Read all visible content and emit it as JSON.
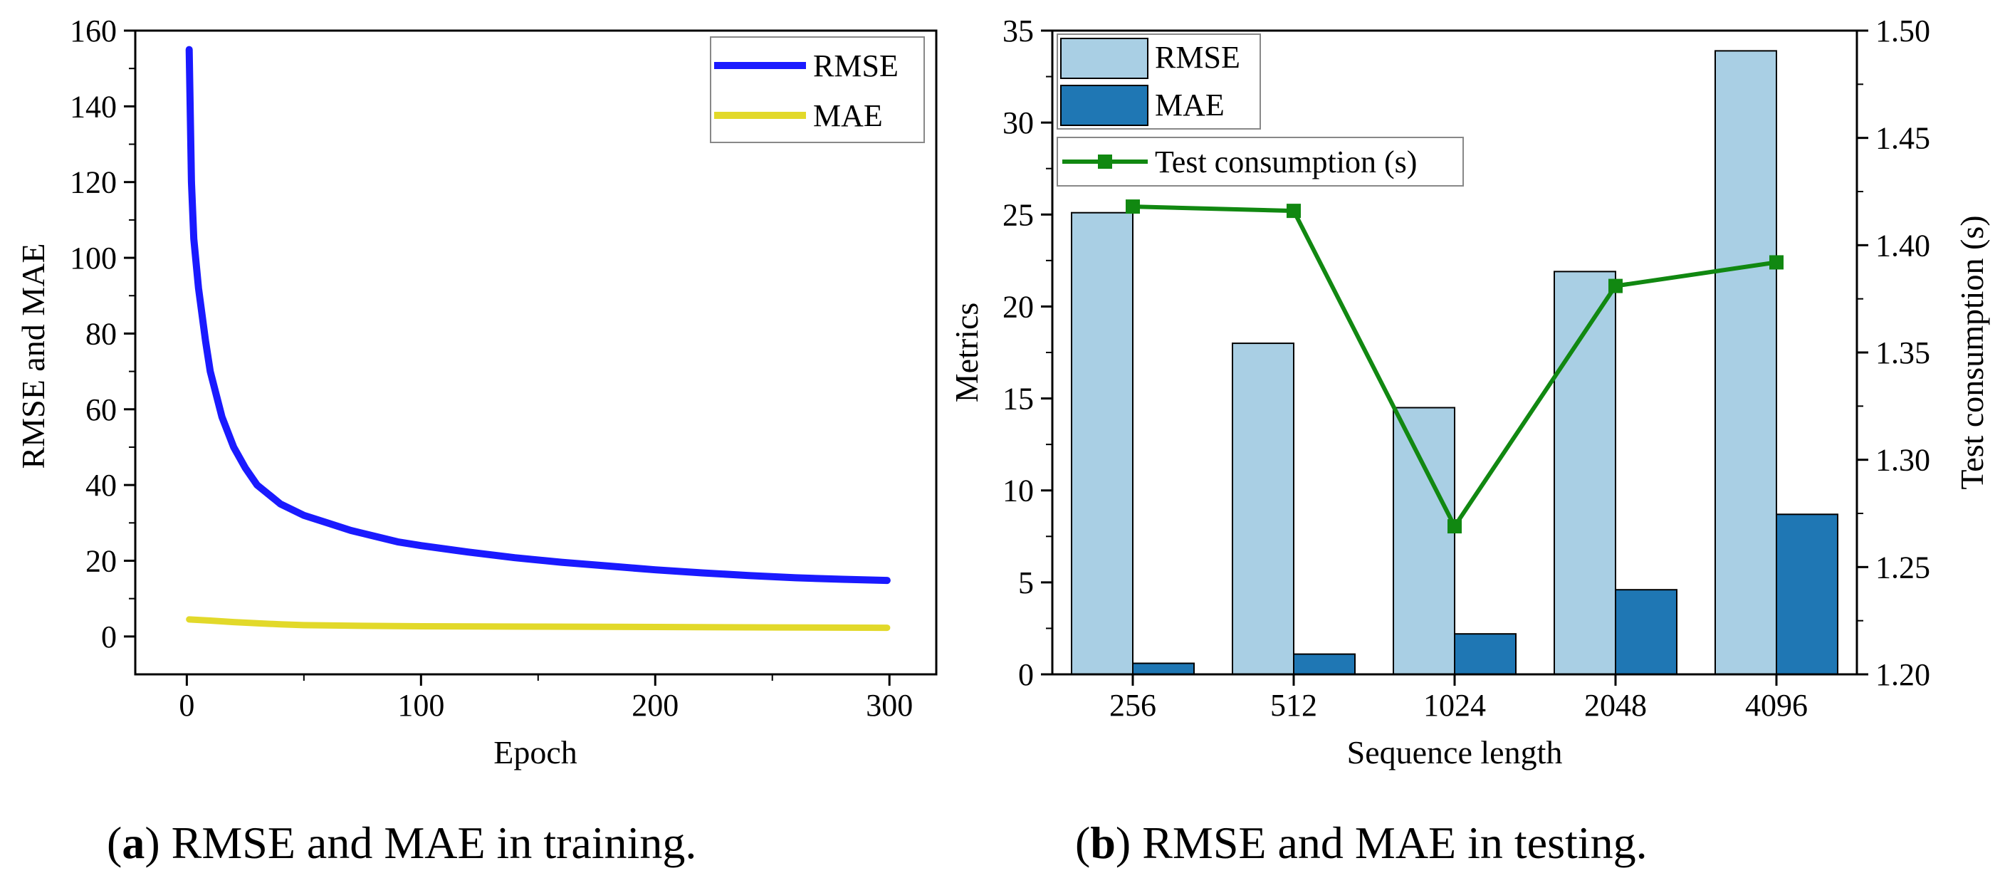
{
  "chart_data": [
    {
      "type": "line",
      "caption_prefix": "(",
      "caption_letter": "a",
      "caption_text": ") RMSE and MAE in training.",
      "xlabel": "Epoch",
      "ylabel": "RMSE and MAE",
      "xlim": [
        -22,
        320
      ],
      "ylim": [
        -10,
        160
      ],
      "xticks": [
        "0",
        "100",
        "200",
        "300"
      ],
      "xtick_values": [
        0,
        100,
        200,
        300
      ],
      "yticks": [
        "0",
        "20",
        "40",
        "60",
        "80",
        "100",
        "120",
        "140",
        "160"
      ],
      "ytick_values": [
        0,
        20,
        40,
        60,
        80,
        100,
        120,
        140,
        160
      ],
      "legend_position": "top-right",
      "series": [
        {
          "name": "RMSE",
          "color": "#1a1aff",
          "x": [
            1,
            2,
            3,
            5,
            8,
            10,
            15,
            20,
            25,
            30,
            40,
            50,
            60,
            70,
            80,
            90,
            100,
            120,
            140,
            160,
            180,
            200,
            220,
            240,
            260,
            280,
            299
          ],
          "y": [
            155,
            120,
            105,
            92,
            78,
            70,
            58,
            50,
            44.5,
            40,
            35,
            32,
            30,
            28,
            26.5,
            25,
            24,
            22.3,
            20.8,
            19.6,
            18.6,
            17.6,
            16.8,
            16.1,
            15.5,
            15.1,
            14.8
          ]
        },
        {
          "name": "MAE",
          "color": "#e2d92a",
          "x": [
            1,
            10,
            20,
            30,
            40,
            50,
            75,
            100,
            150,
            200,
            250,
            299
          ],
          "y": [
            4.5,
            4.2,
            3.8,
            3.5,
            3.2,
            3.0,
            2.8,
            2.7,
            2.6,
            2.5,
            2.4,
            2.3
          ]
        }
      ]
    },
    {
      "type": "bar",
      "caption_prefix": "(",
      "caption_letter": "b",
      "caption_text": ") RMSE and MAE in testing.",
      "xlabel": "Sequence length",
      "ylabel": "Metrics",
      "y2label": "Test consumption (s)",
      "categories": [
        "256",
        "512",
        "1024",
        "2048",
        "4096"
      ],
      "ylim": [
        0,
        35
      ],
      "yticks": [
        "0",
        "5",
        "10",
        "15",
        "20",
        "25",
        "30",
        "35"
      ],
      "ytick_values": [
        0,
        5,
        10,
        15,
        20,
        25,
        30,
        35
      ],
      "y2lim": [
        1.2,
        1.5
      ],
      "y2ticks": [
        "1.20",
        "1.25",
        "1.30",
        "1.35",
        "1.40",
        "1.45",
        "1.50"
      ],
      "y2tick_values": [
        1.2,
        1.25,
        1.3,
        1.35,
        1.4,
        1.45,
        1.5
      ],
      "legend_position": "top-left",
      "series": [
        {
          "name": "RMSE",
          "color": "#a9cfe4",
          "values": [
            25.1,
            18.0,
            14.5,
            21.9,
            33.9
          ]
        },
        {
          "name": "MAE",
          "color": "#1f77b4",
          "values": [
            0.6,
            1.1,
            2.2,
            4.6,
            8.7
          ]
        },
        {
          "name": "Test consumption (s)",
          "color": "#118811",
          "axis": "right",
          "values": [
            1.418,
            1.416,
            1.269,
            1.381,
            1.392
          ]
        }
      ]
    }
  ]
}
